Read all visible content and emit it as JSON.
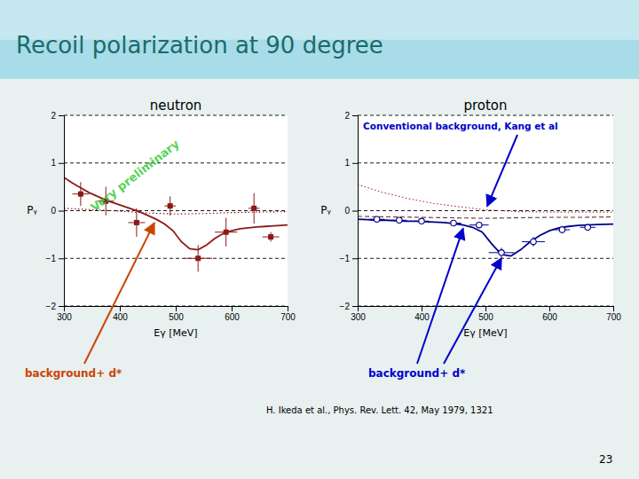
{
  "title": "Recoil polarization at 90 degree",
  "annotations": [
    "H. Ikeda et al., Phys. Rev. Lett. 42, May 1979, 1321",
    "23"
  ],
  "chart_data": [
    {
      "type": "line",
      "title": "neutron",
      "xlabel": "Eγ [MeV]",
      "ylabel": "Pᵧ",
      "xlim": [
        300,
        700
      ],
      "ylim": [
        -2,
        2
      ],
      "xticks": [
        300,
        400,
        500,
        600,
        700
      ],
      "yticks": [
        -2,
        -1,
        0,
        1,
        2
      ],
      "grid": true,
      "series": [
        {
          "type": "line",
          "line_style": "dotted",
          "color": "#8b0000",
          "x": [
            300,
            350,
            400,
            450,
            500,
            550,
            600,
            650,
            700
          ],
          "values": [
            0.05,
            0.02,
            -0.01,
            -0.05,
            -0.07,
            -0.06,
            -0.04,
            -0.03,
            -0.02
          ]
        },
        {
          "type": "line",
          "line_style": "solid",
          "color": "#8b1a1a",
          "x": [
            300,
            315,
            330,
            345,
            360,
            375,
            390,
            405,
            420,
            435,
            450,
            465,
            480,
            495,
            510,
            525,
            540,
            555,
            570,
            585,
            600,
            615,
            630,
            645,
            660,
            675,
            700
          ],
          "values": [
            0.7,
            0.58,
            0.48,
            0.38,
            0.3,
            0.22,
            0.16,
            0.1,
            0.04,
            -0.02,
            -0.1,
            -0.18,
            -0.28,
            -0.42,
            -0.65,
            -0.8,
            -0.82,
            -0.72,
            -0.58,
            -0.48,
            -0.42,
            -0.38,
            -0.36,
            -0.34,
            -0.33,
            -0.32,
            -0.3
          ]
        },
        {
          "type": "scatter",
          "marker": "square",
          "color": "#8b1a1a",
          "x": [
            330,
            375,
            430,
            490,
            540,
            590,
            640,
            670
          ],
          "values": [
            0.35,
            0.2,
            -0.25,
            0.1,
            -1.0,
            -0.45,
            0.05,
            -0.55
          ],
          "x_err": [
            15,
            15,
            15,
            10,
            25,
            20,
            10,
            15
          ],
          "y_err": [
            0.25,
            0.3,
            0.3,
            0.2,
            0.28,
            0.3,
            0.32,
            0.1
          ]
        }
      ],
      "annotations": [
        "Very preliminary",
        "background+ d*"
      ]
    },
    {
      "type": "line",
      "title": "proton",
      "xlabel": "Eγ [MeV]",
      "ylabel": "Pᵧ",
      "xlim": [
        300,
        700
      ],
      "ylim": [
        -2,
        2
      ],
      "xticks": [
        300,
        400,
        500,
        600,
        700
      ],
      "yticks": [
        -2,
        -1,
        0,
        1,
        2
      ],
      "grid": true,
      "series": [
        {
          "type": "line",
          "line_style": "dotted",
          "color": "#aa3333",
          "x": [
            300,
            340,
            380,
            420,
            460,
            500,
            550,
            600,
            650,
            700
          ],
          "values": [
            0.55,
            0.38,
            0.25,
            0.15,
            0.08,
            0.02,
            -0.02,
            -0.03,
            -0.03,
            -0.03
          ]
        },
        {
          "type": "line",
          "line_style": "dashed",
          "color": "#663333",
          "x": [
            300,
            350,
            400,
            450,
            500,
            550,
            600,
            650,
            700
          ],
          "values": [
            -0.12,
            -0.13,
            -0.14,
            -0.15,
            -0.16,
            -0.15,
            -0.14,
            -0.14,
            -0.13
          ]
        },
        {
          "type": "line",
          "line_style": "solid",
          "color": "#00008b",
          "x": [
            300,
            315,
            330,
            345,
            360,
            375,
            390,
            405,
            420,
            435,
            450,
            465,
            480,
            495,
            510,
            525,
            540,
            555,
            570,
            585,
            600,
            615,
            630,
            645,
            660,
            675,
            700
          ],
          "values": [
            -0.18,
            -0.19,
            -0.2,
            -0.2,
            -0.21,
            -0.22,
            -0.22,
            -0.23,
            -0.24,
            -0.25,
            -0.27,
            -0.3,
            -0.35,
            -0.45,
            -0.7,
            -0.92,
            -0.95,
            -0.82,
            -0.65,
            -0.52,
            -0.42,
            -0.36,
            -0.33,
            -0.31,
            -0.3,
            -0.29,
            -0.28
          ]
        },
        {
          "type": "scatter",
          "marker": "open-circle",
          "color": "#00008b",
          "x": [
            330,
            365,
            400,
            450,
            490,
            525,
            575,
            620,
            660
          ],
          "values": [
            -0.18,
            -0.2,
            -0.22,
            -0.26,
            -0.3,
            -0.88,
            -0.65,
            -0.4,
            -0.35
          ],
          "x_err": [
            12,
            12,
            12,
            12,
            15,
            20,
            18,
            12,
            12
          ],
          "y_err": [
            0.05,
            0.05,
            0.05,
            0.06,
            0.06,
            0.1,
            0.1,
            0.08,
            0.07
          ]
        }
      ],
      "annotations": [
        "background+ d*",
        "Conventional background, Kang et al"
      ]
    }
  ]
}
